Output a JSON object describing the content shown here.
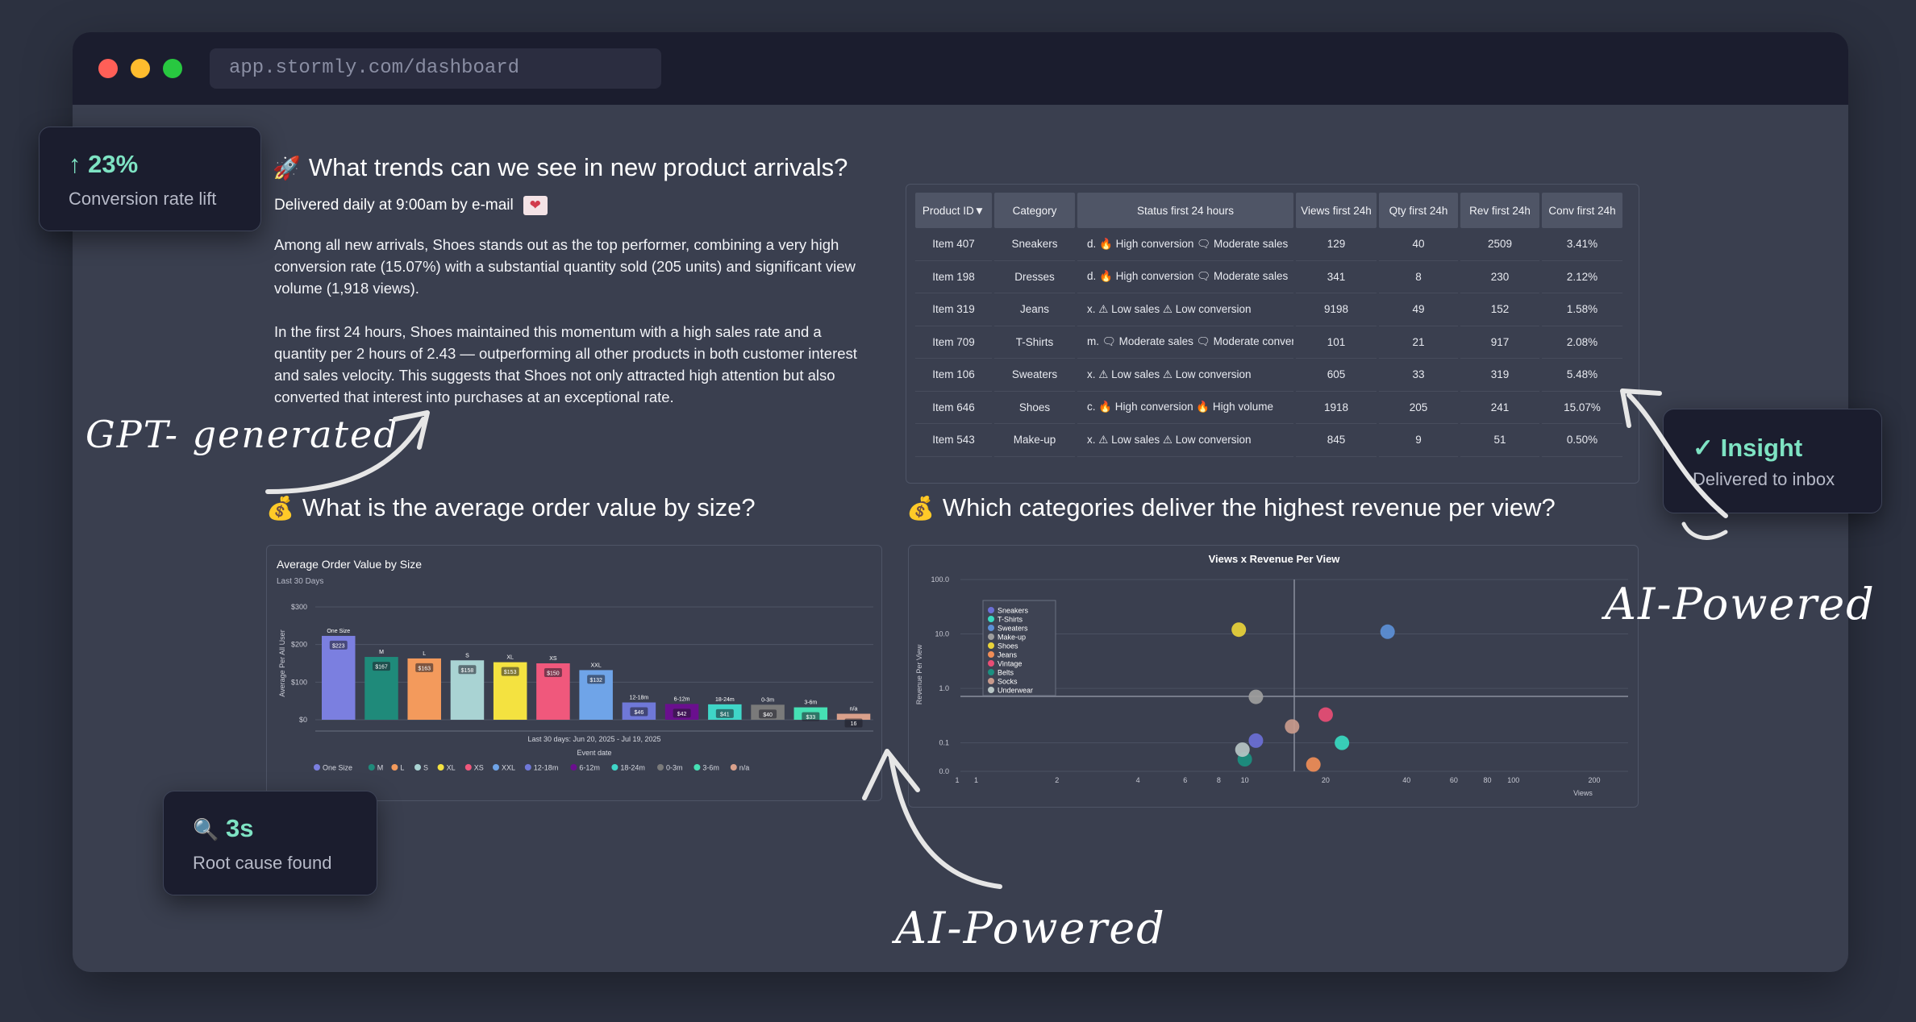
{
  "browser": {
    "url": "app.stormly.com/dashboard"
  },
  "section1": {
    "emoji": "🚀",
    "title": "What trends can we see in new product arrivals?",
    "delivery": "Delivered daily at 9:00am by e-mail",
    "heart": "❤",
    "paragraph1": "Among all new arrivals, Shoes stands out as the top performer, combining a very high conversion rate (15.07%) with a substantial quantity sold (205 units) and significant view volume (1,918 views).",
    "paragraph2": "In the first 24 hours, Shoes maintained this momentum with a high sales rate and a quantity per 2 hours of 2.43 — outperforming all other products in both customer interest and sales velocity. This suggests that Shoes not only attracted high attention but also converted that interest into purchases at an exceptional rate."
  },
  "table": {
    "headers": [
      "Product ID▼",
      "Category",
      "Status first 24 hours",
      "Views first 24h",
      "Qty first 24h",
      "Rev first 24h",
      "Conv first 24h"
    ],
    "rows": [
      [
        "Item 407",
        "Sneakers",
        "d. 🔥 High conversion 🗨 Moderate sales",
        "129",
        "40",
        "2509",
        "3.41%"
      ],
      [
        "Item 198",
        "Dresses",
        "d. 🔥 High conversion 🗨 Moderate sales",
        "341",
        "8",
        "230",
        "2.12%"
      ],
      [
        "Item 319",
        "Jeans",
        "x. ⚠ Low sales ⚠ Low conversion",
        "9198",
        "49",
        "152",
        "1.58%"
      ],
      [
        "Item 709",
        "T-Shirts",
        "m. 🗨 Moderate sales 🗨 Moderate convers",
        "101",
        "21",
        "917",
        "2.08%"
      ],
      [
        "Item 106",
        "Sweaters",
        "x. ⚠ Low sales ⚠ Low conversion",
        "605",
        "33",
        "319",
        "5.48%"
      ],
      [
        "Item 646",
        "Shoes",
        "c. 🔥 High conversion 🔥 High volume",
        "1918",
        "205",
        "241",
        "15.07%"
      ],
      [
        "Item 543",
        "Make-up",
        "x. ⚠ Low sales ⚠ Low conversion",
        "845",
        "9",
        "51",
        "0.50%"
      ]
    ]
  },
  "section2": {
    "emoji": "💰",
    "title": "What is the average order value by size?"
  },
  "section3": {
    "emoji": "💰",
    "title": "Which categories deliver the highest revenue per view?"
  },
  "chart_data": [
    {
      "type": "bar",
      "title": "Average Order Value by Size",
      "subtitle": "Last 30 Days",
      "ylabel": "Average Per All User",
      "xlabel": "Event date",
      "x_range_label": "Last 30 days: Jun 20, 2025 - Jul 19, 2025",
      "yticks": [
        "$0",
        "$100",
        "$200",
        "$300"
      ],
      "ylim": [
        0,
        300
      ],
      "categories": [
        "One Size",
        "M",
        "L",
        "S",
        "XL",
        "XS",
        "XXL",
        "12-18m",
        "6-12m",
        "18-24m",
        "0-3m",
        "3-6m",
        "n/a"
      ],
      "values": [
        223,
        167,
        163,
        158,
        153,
        150,
        132,
        46,
        42,
        41,
        40,
        33,
        16
      ],
      "value_labels": [
        "$223",
        "$167",
        "$163",
        "$158",
        "$153",
        "$150",
        "$132",
        "$46",
        "$42",
        "$41",
        "$40",
        "$33",
        "16"
      ],
      "colors": [
        "#7b7fe0",
        "#1f8a7a",
        "#f39a5c",
        "#a9d3d3",
        "#f4e240",
        "#f0587c",
        "#6fa4e8",
        "#6f78d8",
        "#6a0f8e",
        "#3fd6c8",
        "#7a7a7a",
        "#46e0b4",
        "#d9a08b"
      ]
    },
    {
      "type": "scatter",
      "title": "Views x Revenue Per View",
      "xlabel": "Views",
      "ylabel": "Revenue Per View",
      "x_scale": "log",
      "y_scale": "log",
      "xticks": [
        "1",
        "1",
        "2",
        "4",
        "6",
        "8",
        "10",
        "20",
        "40",
        "60",
        "80",
        "100",
        "200"
      ],
      "yticks": [
        "0.0",
        "0.1",
        "1.0",
        "10.0",
        "100.0"
      ],
      "legend_position": "top-left",
      "series": [
        {
          "name": "Sneakers",
          "color": "#6b6fd6",
          "x": 11,
          "y": 0.11
        },
        {
          "name": "T-Shirts",
          "color": "#38d9c0",
          "x": 23,
          "y": 0.1
        },
        {
          "name": "Sweaters",
          "color": "#5c8fd6",
          "x": 34,
          "y": 11
        },
        {
          "name": "Make-up",
          "color": "#9e9e9e",
          "x": 11,
          "y": 0.7
        },
        {
          "name": "Shoes",
          "color": "#e9d33a",
          "x": 9.5,
          "y": 12
        },
        {
          "name": "Jeans",
          "color": "#f08d57",
          "x": 18,
          "y": 0.04
        },
        {
          "name": "Vintage",
          "color": "#e94d75",
          "x": 20,
          "y": 0.33
        },
        {
          "name": "Belts",
          "color": "#1b9080",
          "x": 10,
          "y": 0.05
        },
        {
          "name": "Socks",
          "color": "#c99a8c",
          "x": 15,
          "y": 0.2
        },
        {
          "name": "Underwear",
          "color": "#b7c4c4",
          "x": 9.8,
          "y": 0.075
        }
      ]
    }
  ],
  "callouts": {
    "conversion": {
      "value": "↑ 23%",
      "label": "Conversion rate lift"
    },
    "insight": {
      "value": "✓ Insight",
      "label": "Delivered to inbox"
    },
    "rootcause": {
      "icon": "🔍",
      "value": "3s",
      "label": "Root cause found"
    }
  },
  "annotations": {
    "gpt": "GPT- generated",
    "ai_right": "AI-Powered",
    "ai_bottom": "AI-Powered"
  },
  "colors": {
    "accent_green": "#7ee3c3",
    "window_bg": "#3a3f4f",
    "titlebar_bg": "#1b1d2e"
  }
}
